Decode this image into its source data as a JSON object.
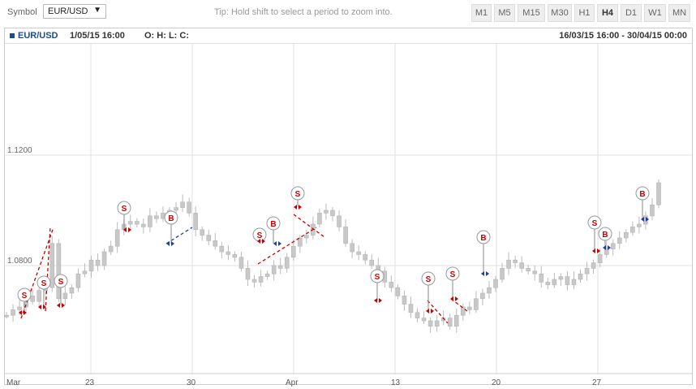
{
  "toolbar": {
    "symbol_label": "Symbol",
    "symbol_value": "EUR/USD",
    "tip": "Tip: Hold shift to select a period to zoom into.",
    "timeframes": [
      "M1",
      "M5",
      "M15",
      "M30",
      "H1",
      "H4",
      "D1",
      "W1",
      "MN"
    ],
    "active_timeframe": "H4"
  },
  "info": {
    "symbol": "EUR/USD",
    "datetime": "1/05/15 16:00",
    "ohlc": "O: H: L: C:",
    "range": "16/03/15 16:00 - 30/04/15 00:00"
  },
  "colors": {
    "sell": "#cc0000",
    "buy": "#1a3fa6",
    "candle": "#c8c8c8",
    "grid": "#e0e0e0"
  },
  "chart_data": {
    "type": "candlestick",
    "y_ticks": [
      1.12,
      1.08
    ],
    "y_tick_labels": [
      "1.1200",
      "1.0800"
    ],
    "x_tick_labels": [
      "Mar",
      "23",
      "30",
      "Apr",
      "13",
      "20",
      "27"
    ],
    "grid": true,
    "series": [
      1.062,
      1.064,
      1.065,
      1.069,
      1.067,
      1.071,
      1.072,
      1.088,
      1.068,
      1.07,
      1.072,
      1.077,
      1.078,
      1.082,
      1.08,
      1.085,
      1.087,
      1.093,
      1.095,
      1.096,
      1.095,
      1.094,
      1.098,
      1.097,
      1.099,
      1.1,
      1.101,
      1.103,
      1.099,
      1.093,
      1.091,
      1.089,
      1.087,
      1.085,
      1.084,
      1.083,
      1.079,
      1.075,
      1.074,
      1.076,
      1.077,
      1.08,
      1.079,
      1.083,
      1.087,
      1.09,
      1.091,
      1.095,
      1.099,
      1.1,
      1.098,
      1.094,
      1.088,
      1.085,
      1.084,
      1.082,
      1.08,
      1.078,
      1.074,
      1.072,
      1.069,
      1.066,
      1.063,
      1.061,
      1.06,
      1.058,
      1.06,
      1.061,
      1.058,
      1.062,
      1.065,
      1.064,
      1.068,
      1.07,
      1.072,
      1.075,
      1.079,
      1.082,
      1.081,
      1.079,
      1.078,
      1.077,
      1.074,
      1.073,
      1.075,
      1.076,
      1.073,
      1.075,
      1.077,
      1.079,
      1.081,
      1.084,
      1.086,
      1.088,
      1.09,
      1.092,
      1.094,
      1.095,
      1.098,
      1.102,
      1.11
    ],
    "trades": [
      {
        "type": "S",
        "label": "S"
      },
      {
        "type": "S",
        "label": "S"
      },
      {
        "type": "S",
        "label": "S"
      },
      {
        "type": "S",
        "label": "S"
      },
      {
        "type": "B",
        "label": "B"
      },
      {
        "type": "S",
        "label": "S"
      },
      {
        "type": "B",
        "label": "B"
      },
      {
        "type": "S",
        "label": "S"
      },
      {
        "type": "S",
        "label": "S"
      },
      {
        "type": "S",
        "label": "S"
      },
      {
        "type": "S",
        "label": "S"
      },
      {
        "type": "B",
        "label": "B"
      },
      {
        "type": "S",
        "label": "S"
      },
      {
        "type": "B",
        "label": "B"
      },
      {
        "type": "B",
        "label": "B"
      }
    ]
  }
}
